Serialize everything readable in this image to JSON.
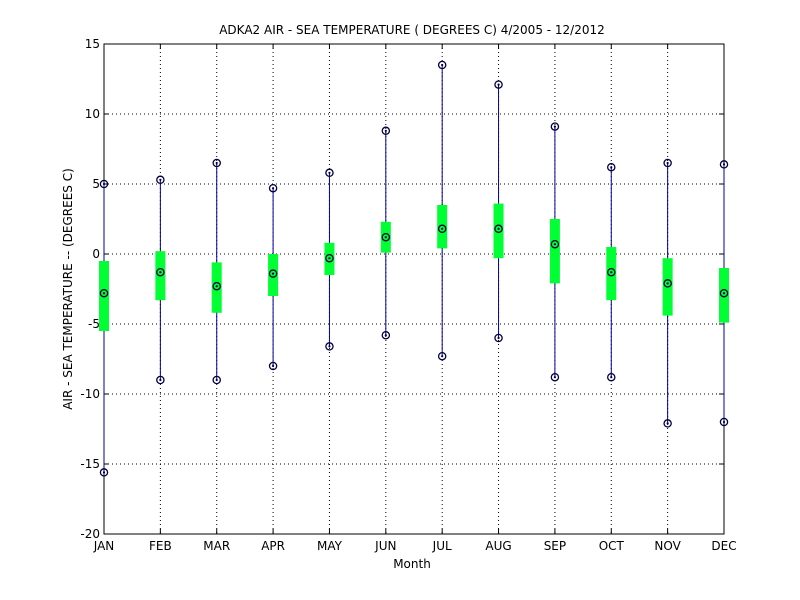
{
  "chart_data": {
    "type": "boxplot",
    "title": "ADKA2  AIR - SEA TEMPERATURE ( DEGREES C) 4/2005 - 12/2012",
    "xlabel": "Month",
    "ylabel": "AIR - SEA TEMPERATURE -- (DEGREES C)",
    "categories": [
      "JAN",
      "FEB",
      "MAR",
      "APR",
      "MAY",
      "JUN",
      "JUL",
      "AUG",
      "SEP",
      "OCT",
      "NOV",
      "DEC"
    ],
    "ylim": [
      -20,
      15
    ],
    "yticks": [
      -20,
      -15,
      -10,
      -5,
      0,
      5,
      10,
      15
    ],
    "grid": true,
    "min": [
      -15.6,
      -9.0,
      -9.0,
      -8.0,
      -6.6,
      -5.8,
      -7.3,
      -6.0,
      -8.8,
      -8.8,
      -12.1,
      -12.0
    ],
    "q1": [
      -5.5,
      -3.3,
      -4.2,
      -3.0,
      -1.5,
      0.1,
      0.4,
      -0.3,
      -2.1,
      -3.3,
      -4.4,
      -4.9
    ],
    "median": [
      -2.8,
      -1.3,
      -2.3,
      -1.4,
      -0.3,
      1.2,
      1.8,
      1.8,
      0.7,
      -1.3,
      -2.1,
      -2.8
    ],
    "q3": [
      -0.5,
      0.2,
      -0.6,
      0.0,
      0.8,
      2.3,
      3.5,
      3.6,
      2.5,
      0.5,
      -0.3,
      -1.0
    ],
    "max": [
      5.0,
      5.3,
      6.5,
      4.7,
      5.8,
      8.8,
      13.5,
      12.1,
      9.1,
      6.2,
      6.5,
      6.4
    ],
    "colors": {
      "box": "#00ff33",
      "whisker": "#00009a",
      "marker": "#000040"
    }
  }
}
